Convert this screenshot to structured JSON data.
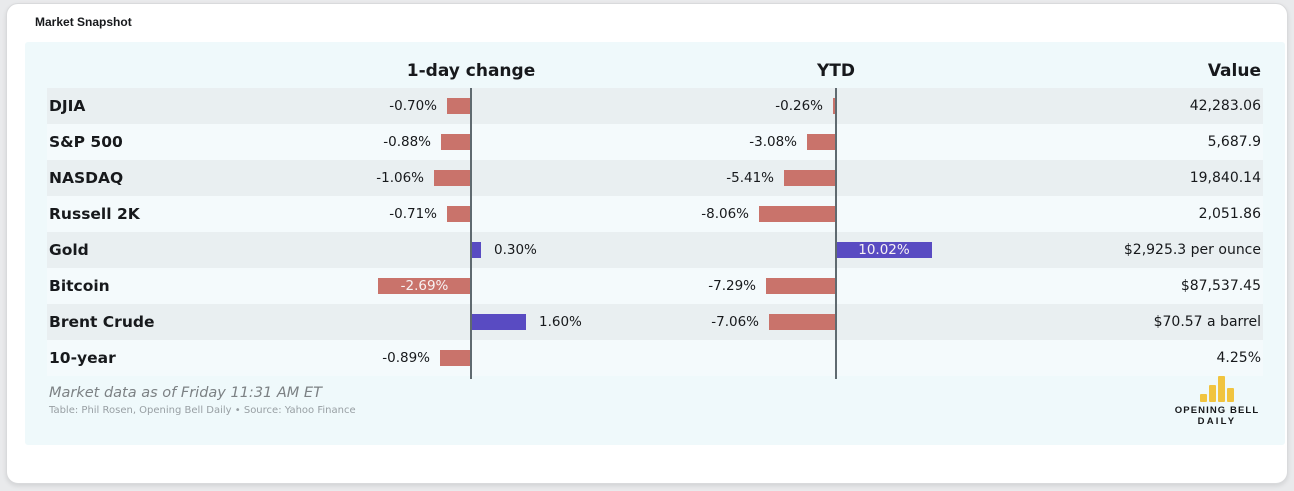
{
  "window": {
    "title": "Market Snapshot"
  },
  "chart_data": {
    "type": "bar",
    "title": "Market Snapshot",
    "columns": {
      "one_day": "1-day change",
      "ytd": "YTD",
      "value": "Value"
    },
    "colors": {
      "negative_bar": "#c9736b",
      "positive_bar": "#594bc2",
      "axis": "#5f6a70",
      "card_bg": "#eff9fb",
      "stripe_dark": "#e9eff1",
      "stripe_light": "#f4fafc",
      "logo_gold": "#f1c43f"
    },
    "legend_position": "none",
    "rows": [
      {
        "label": "DJIA",
        "one_day_pct": -0.7,
        "one_day_label": "-0.70%",
        "one_day_inside": false,
        "ytd_pct": -0.26,
        "ytd_label": "-0.26%",
        "ytd_inside": false,
        "value": "42,283.06"
      },
      {
        "label": "S&P 500",
        "one_day_pct": -0.88,
        "one_day_label": "-0.88%",
        "one_day_inside": false,
        "ytd_pct": -3.08,
        "ytd_label": "-3.08%",
        "ytd_inside": false,
        "value": "5,687.9"
      },
      {
        "label": "NASDAQ",
        "one_day_pct": -1.06,
        "one_day_label": "-1.06%",
        "one_day_inside": false,
        "ytd_pct": -5.41,
        "ytd_label": "-5.41%",
        "ytd_inside": false,
        "value": "19,840.14"
      },
      {
        "label": "Russell 2K",
        "one_day_pct": -0.71,
        "one_day_label": "-0.71%",
        "one_day_inside": false,
        "ytd_pct": -8.06,
        "ytd_label": "-8.06%",
        "ytd_inside": false,
        "value": "2,051.86"
      },
      {
        "label": "Gold",
        "one_day_pct": 0.3,
        "one_day_label": "0.30%",
        "one_day_inside": false,
        "ytd_pct": 10.02,
        "ytd_label": "10.02%",
        "ytd_inside": true,
        "value": "$2,925.3 per ounce"
      },
      {
        "label": "Bitcoin",
        "one_day_pct": -2.69,
        "one_day_label": "-2.69%",
        "one_day_inside": true,
        "ytd_pct": -7.29,
        "ytd_label": "-7.29%",
        "ytd_inside": false,
        "value": "$87,537.45"
      },
      {
        "label": "Brent Crude",
        "one_day_pct": 1.6,
        "one_day_label": "1.60%",
        "one_day_inside": false,
        "ytd_pct": -7.06,
        "ytd_label": "-7.06%",
        "ytd_inside": false,
        "value": "$70.57 a barrel"
      },
      {
        "label": "10-year",
        "one_day_pct": -0.89,
        "one_day_label": "-0.89%",
        "one_day_inside": false,
        "ytd_pct": null,
        "ytd_label": "",
        "ytd_inside": false,
        "value": "4.25%"
      }
    ]
  },
  "footer": {
    "asof": "Market data as of Friday 11:31 AM ET",
    "credit": "Table: Phil Rosen, Opening Bell Daily • Source: Yahoo Finance",
    "logo_line1": "OPENING BELL",
    "logo_line2": "DAILY"
  }
}
